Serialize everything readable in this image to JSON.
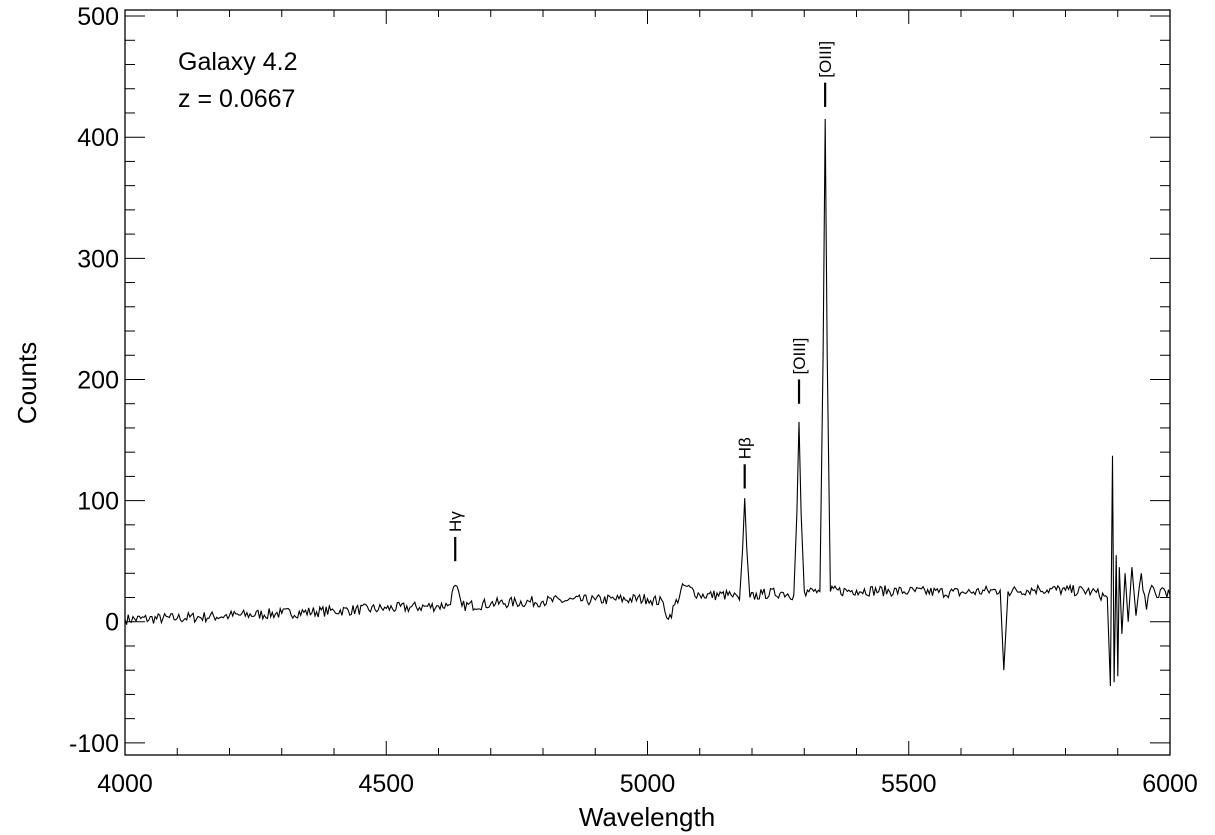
{
  "chart_data": {
    "type": "line",
    "title": "",
    "xlabel": "Wavelength",
    "ylabel": "Counts",
    "xlim": [
      4000,
      6000
    ],
    "ylim": [
      -110,
      505
    ],
    "grid": false,
    "legend": "none",
    "x_ticks": [
      4000,
      4500,
      5000,
      5500,
      6000
    ],
    "x_tick_labels": [
      "4000",
      "4500",
      "5000",
      "5500",
      "6000"
    ],
    "y_ticks": [
      -100,
      0,
      100,
      200,
      300,
      400,
      500
    ],
    "y_tick_labels": [
      "-100",
      "0",
      "100",
      "200",
      "300",
      "400",
      "500"
    ],
    "annotations": [
      {
        "text": "Galaxy 4.2",
        "position": "top-left"
      },
      {
        "text": "z = 0.0667",
        "position": "top-left"
      }
    ],
    "line_markers": [
      {
        "label": "Hγ",
        "x": 4632,
        "y_bottom": 50,
        "y_top": 70
      },
      {
        "label": "Hβ",
        "x": 5186,
        "y_bottom": 110,
        "y_top": 130
      },
      {
        "label": "[OIII]",
        "x": 5290,
        "y_bottom": 180,
        "y_top": 200
      },
      {
        "label": "[OIII]",
        "x": 5340,
        "y_bottom": 425,
        "y_top": 445
      }
    ],
    "series": [
      {
        "x": [
          4000,
          4100,
          4200,
          4300,
          4400,
          4500,
          4600,
          4620,
          4632,
          4645,
          4700,
          4800,
          4900,
          5000,
          5030,
          5040,
          5070,
          5100,
          5160,
          5176,
          5182,
          5186,
          5190,
          5196,
          5220,
          5260,
          5280,
          5286,
          5290,
          5294,
          5300,
          5330,
          5336,
          5340,
          5344,
          5350,
          5400,
          5500,
          5600,
          5675,
          5682,
          5690,
          5750,
          5800,
          5850,
          5880,
          5886,
          5890,
          5893,
          5897,
          5900,
          5903,
          5908,
          5914,
          5920,
          5927,
          5935,
          5945,
          5955,
          5965,
          5975,
          5985,
          6000
        ],
        "y": [
          2,
          3,
          5,
          7,
          9,
          11,
          13,
          14,
          30,
          13,
          15,
          17,
          18,
          19,
          16,
          2,
          30,
          22,
          22,
          18,
          60,
          102,
          60,
          20,
          23,
          24,
          22,
          90,
          165,
          90,
          25,
          25,
          220,
          415,
          220,
          25,
          26,
          25,
          24,
          26,
          -40,
          25,
          27,
          26,
          25,
          20,
          -53,
          137,
          -50,
          55,
          -45,
          45,
          -10,
          40,
          0,
          45,
          5,
          40,
          10,
          30,
          20,
          28,
          22
        ]
      }
    ]
  }
}
